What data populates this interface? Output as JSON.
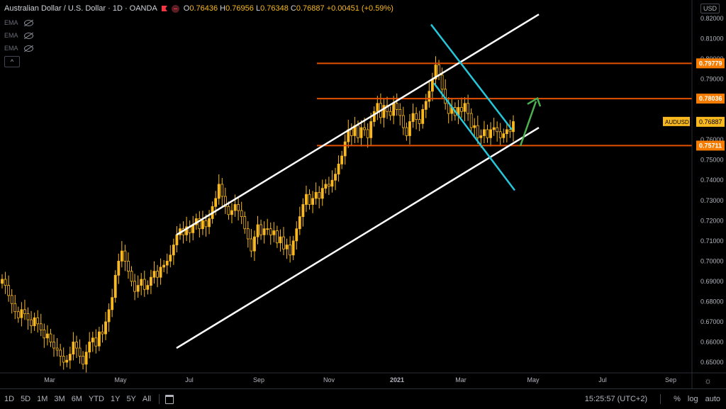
{
  "header": {
    "symbol_title": "Australian Dollar / U.S. Dollar · 1D · OANDA",
    "ohlc": {
      "o_label": "O",
      "o": "0.76436",
      "h_label": "H",
      "h": "0.76956",
      "l_label": "L",
      "l": "0.76348",
      "c_label": "C",
      "c": "0.76887",
      "change": "+0.00451 (+0.59%)"
    }
  },
  "indicators": [
    {
      "label": "EMA"
    },
    {
      "label": "EMA"
    },
    {
      "label": "EMA"
    }
  ],
  "collapse_symbol": "^",
  "currency": "USD",
  "price_axis": {
    "ticks": [
      "0.82000",
      "0.81000",
      "0.80000",
      "0.79000",
      "0.78000",
      "0.77000",
      "0.76000",
      "0.75000",
      "0.74000",
      "0.73000",
      "0.72000",
      "0.71000",
      "0.70000",
      "0.69000",
      "0.68000",
      "0.67000",
      "0.66000",
      "0.65000"
    ],
    "levels": [
      {
        "label": "0.79779",
        "value": 0.79779
      },
      {
        "label": "0.78036",
        "value": 0.78036
      },
      {
        "label": "0.75711",
        "value": 0.75711
      }
    ],
    "current": {
      "symbol": "AUDUSD",
      "label": "0.76887",
      "value": 0.76887
    }
  },
  "time_axis": {
    "labels": [
      "Mar",
      "May",
      "Jul",
      "Sep",
      "Nov",
      "2021",
      "Mar",
      "May",
      "Jul",
      "Sep"
    ]
  },
  "bottom_bar": {
    "ranges": [
      "1D",
      "5D",
      "1M",
      "3M",
      "6M",
      "YTD",
      "1Y",
      "5Y",
      "All"
    ],
    "clock": "15:25:57 (UTC+2)",
    "percent": "%",
    "log": "log",
    "auto": "auto"
  },
  "colors": {
    "candle": "#f9b91f",
    "horizontal_level": "#e65100",
    "level_badge": "#f57c00",
    "channel": "#ffffff",
    "falling_channel": "#26c6da",
    "arrow": "#4caf50"
  },
  "chart_data": {
    "type": "candlestick",
    "symbol": "AUDUSD",
    "ylim": [
      0.645,
      0.825
    ],
    "series_close": [
      0.691,
      0.688,
      0.683,
      0.679,
      0.675,
      0.672,
      0.676,
      0.674,
      0.671,
      0.668,
      0.672,
      0.669,
      0.666,
      0.662,
      0.664,
      0.66,
      0.657,
      0.656,
      0.653,
      0.65,
      0.651,
      0.654,
      0.66,
      0.657,
      0.653,
      0.649,
      0.655,
      0.66,
      0.662,
      0.658,
      0.665,
      0.664,
      0.67,
      0.676,
      0.682,
      0.693,
      0.7,
      0.705,
      0.7,
      0.695,
      0.69,
      0.685,
      0.688,
      0.691,
      0.686,
      0.688,
      0.692,
      0.695,
      0.692,
      0.697,
      0.698,
      0.7,
      0.703,
      0.708,
      0.713,
      0.716,
      0.713,
      0.717,
      0.714,
      0.718,
      0.721,
      0.716,
      0.72,
      0.717,
      0.721,
      0.727,
      0.731,
      0.738,
      0.732,
      0.727,
      0.723,
      0.725,
      0.728,
      0.725,
      0.722,
      0.716,
      0.711,
      0.705,
      0.712,
      0.718,
      0.713,
      0.716,
      0.716,
      0.713,
      0.715,
      0.709,
      0.712,
      0.706,
      0.708,
      0.703,
      0.71,
      0.716,
      0.722,
      0.728,
      0.733,
      0.728,
      0.731,
      0.734,
      0.731,
      0.736,
      0.738,
      0.737,
      0.74,
      0.743,
      0.748,
      0.752,
      0.759,
      0.765,
      0.762,
      0.767,
      0.761,
      0.766,
      0.765,
      0.761,
      0.769,
      0.774,
      0.778,
      0.771,
      0.777,
      0.774,
      0.772,
      0.778,
      0.775,
      0.772,
      0.766,
      0.762,
      0.769,
      0.773,
      0.77,
      0.768,
      0.775,
      0.779,
      0.784,
      0.79,
      0.797,
      0.792,
      0.785,
      0.778,
      0.773,
      0.776,
      0.772,
      0.776,
      0.774,
      0.778,
      0.773,
      0.766,
      0.767,
      0.761,
      0.762,
      0.765,
      0.761,
      0.765,
      0.766,
      0.764,
      0.761,
      0.763,
      0.765,
      0.764,
      0.769
    ],
    "horizontal_levels": [
      0.79779,
      0.78036,
      0.75711
    ],
    "trend_channel": {
      "upper": [
        [
          0.713,
          0.822
        ]
      ],
      "lower": [
        [
          0.657,
          0.766
        ]
      ]
    },
    "falling_channel": {
      "upper": [
        0.817,
        0.765
      ],
      "lower": [
        0.788,
        0.735
      ]
    }
  }
}
